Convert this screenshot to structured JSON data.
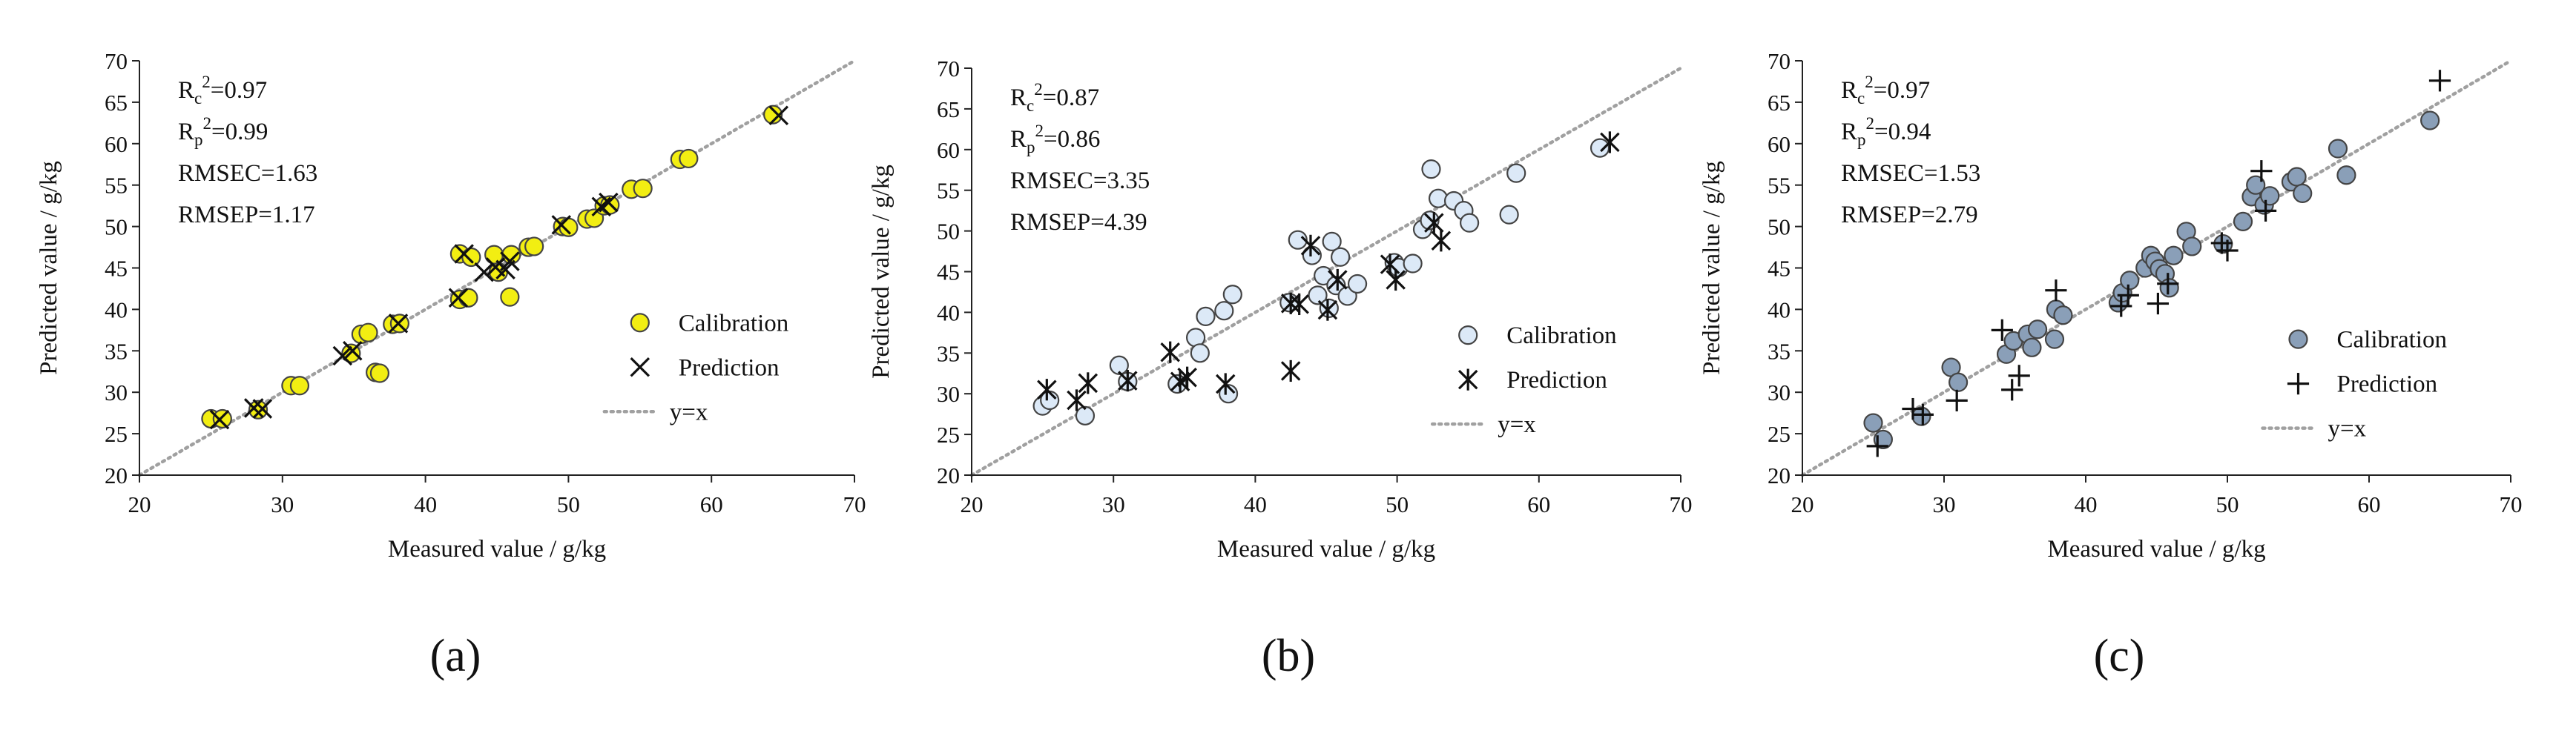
{
  "colors": {
    "axis": "#222222",
    "reference_line": "#a0a0a0",
    "cal_fill_a": "#f2ee12",
    "cal_fill_b": "#dce9f7",
    "cal_fill_c": "#8a9fb8",
    "marker_stroke": "#444444",
    "pred_marker": "#111111"
  },
  "panel_labels": [
    "(a)",
    "(b)",
    "(c)"
  ],
  "chart_data": [
    {
      "type": "scatter",
      "panel": "(a)",
      "xlabel": "Measured value / g/kg",
      "ylabel": "Predicted value / g/kg",
      "xlim": [
        20,
        70
      ],
      "ylim": [
        20,
        70
      ],
      "xticks": [
        20,
        30,
        40,
        50,
        60,
        70
      ],
      "yticks": [
        20,
        25,
        30,
        35,
        40,
        45,
        50,
        55,
        60,
        65,
        70
      ],
      "grid": false,
      "legend_position": "bottom-right",
      "stats": [
        {
          "sym": "R",
          "sub": "c",
          "sup": "2",
          "val": "=0.97"
        },
        {
          "sym": "R",
          "sub": "p",
          "sup": "2",
          "val": "=0.99"
        },
        {
          "sym": "RMSEC",
          "sub": "",
          "sup": "",
          "val": "=1.63"
        },
        {
          "sym": "RMSEP",
          "sub": "",
          "sup": "",
          "val": "=1.17"
        }
      ],
      "series": [
        {
          "name": "Calibration",
          "marker": "circle",
          "points": [
            [
              25,
              26.8
            ],
            [
              25.8,
              26.8
            ],
            [
              28.3,
              27.9
            ],
            [
              30.6,
              30.8
            ],
            [
              31.2,
              30.8
            ],
            [
              34.8,
              34.7
            ],
            [
              35.5,
              37
            ],
            [
              36,
              37.2
            ],
            [
              36.5,
              32.4
            ],
            [
              36.8,
              32.3
            ],
            [
              37.7,
              38.2
            ],
            [
              38.2,
              38.3
            ],
            [
              42.4,
              41.2
            ],
            [
              42.4,
              46.7
            ],
            [
              43,
              41.4
            ],
            [
              43.2,
              46.3
            ],
            [
              44.8,
              46.6
            ],
            [
              45.1,
              44.5
            ],
            [
              45.9,
              41.5
            ],
            [
              46,
              46.6
            ],
            [
              47.2,
              47.5
            ],
            [
              47.6,
              47.6
            ],
            [
              49.6,
              50
            ],
            [
              50,
              49.9
            ],
            [
              51.3,
              50.9
            ],
            [
              51.8,
              51
            ],
            [
              52.5,
              52.5
            ],
            [
              52.9,
              52.6
            ],
            [
              54.4,
              54.5
            ],
            [
              55.2,
              54.6
            ],
            [
              57.8,
              58.1
            ],
            [
              58.4,
              58.2
            ],
            [
              64.3,
              63.5
            ]
          ]
        },
        {
          "name": "Prediction",
          "marker": "x",
          "points": [
            [
              25.6,
              26.7
            ],
            [
              28,
              28.1
            ],
            [
              28.6,
              28
            ],
            [
              34.2,
              34.4
            ],
            [
              34.9,
              35
            ],
            [
              38.1,
              38.3
            ],
            [
              42.3,
              41.4
            ],
            [
              42.7,
              46.7
            ],
            [
              44.1,
              44.5
            ],
            [
              44.9,
              45.1
            ],
            [
              45.6,
              44.8
            ],
            [
              45.9,
              45.8
            ],
            [
              49.5,
              50.2
            ],
            [
              52.3,
              52.4
            ],
            [
              52.8,
              52.9
            ],
            [
              64.7,
              63.4
            ]
          ]
        },
        {
          "name": "y=x",
          "marker": "line-dotted",
          "points": [
            [
              20,
              20
            ],
            [
              70,
              70
            ]
          ]
        }
      ]
    },
    {
      "type": "scatter",
      "panel": "(b)",
      "xlabel": "Measured value / g/kg",
      "ylabel": "Predicted value / g/kg",
      "xlim": [
        20,
        70
      ],
      "ylim": [
        20,
        70
      ],
      "xticks": [
        20,
        30,
        40,
        50,
        60,
        70
      ],
      "yticks": [
        20,
        25,
        30,
        35,
        40,
        45,
        50,
        55,
        60,
        65,
        70
      ],
      "grid": false,
      "legend_position": "bottom-right",
      "stats": [
        {
          "sym": "R",
          "sub": "c",
          "sup": "2",
          "val": "=0.87"
        },
        {
          "sym": "R",
          "sub": "p",
          "sup": "2",
          "val": "=0.86"
        },
        {
          "sym": "RMSEC",
          "sub": "",
          "sup": "",
          "val": "=3.35"
        },
        {
          "sym": "RMSEP",
          "sub": "",
          "sup": "",
          "val": "=4.39"
        }
      ],
      "series": [
        {
          "name": "Calibration",
          "marker": "circle",
          "points": [
            [
              25,
              28.5
            ],
            [
              25.5,
              29.2
            ],
            [
              28,
              27.3
            ],
            [
              30.4,
              33.5
            ],
            [
              31,
              31.5
            ],
            [
              34.5,
              31.2
            ],
            [
              35.8,
              36.9
            ],
            [
              36.1,
              35
            ],
            [
              36.5,
              39.5
            ],
            [
              37.8,
              40.2
            ],
            [
              38.1,
              30
            ],
            [
              38.4,
              42.2
            ],
            [
              42.4,
              41.2
            ],
            [
              43,
              48.9
            ],
            [
              44,
              47
            ],
            [
              44.4,
              42.1
            ],
            [
              44.8,
              44.5
            ],
            [
              45.2,
              40.5
            ],
            [
              45.4,
              48.7
            ],
            [
              45.7,
              43.3
            ],
            [
              46,
              46.8
            ],
            [
              46.5,
              42
            ],
            [
              47.2,
              43.5
            ],
            [
              49.8,
              46.1
            ],
            [
              50.1,
              45.5
            ],
            [
              51.1,
              46
            ],
            [
              51.8,
              50.2
            ],
            [
              52.3,
              51.3
            ],
            [
              52.4,
              57.6
            ],
            [
              52.9,
              54
            ],
            [
              54,
              53.7
            ],
            [
              54.7,
              52.5
            ],
            [
              55.1,
              51
            ],
            [
              57.9,
              52
            ],
            [
              58.4,
              57.1
            ],
            [
              64.3,
              60.2
            ]
          ]
        },
        {
          "name": "Prediction",
          "marker": "asterisk",
          "points": [
            [
              25.3,
              30.5
            ],
            [
              27.4,
              29.2
            ],
            [
              28.2,
              31.3
            ],
            [
              31,
              31.6
            ],
            [
              34,
              35.1
            ],
            [
              34.7,
              31.5
            ],
            [
              35.2,
              32
            ],
            [
              37.9,
              31.2
            ],
            [
              42.5,
              32.8
            ],
            [
              42.5,
              41.1
            ],
            [
              43.1,
              41
            ],
            [
              43.9,
              48.2
            ],
            [
              45.1,
              40.3
            ],
            [
              45.8,
              44
            ],
            [
              49.5,
              45.9
            ],
            [
              49.9,
              44
            ],
            [
              52.6,
              51
            ],
            [
              53.1,
              48.8
            ],
            [
              65,
              60.9
            ]
          ]
        },
        {
          "name": "y=x",
          "marker": "line-dotted",
          "points": [
            [
              20,
              20
            ],
            [
              70,
              70
            ]
          ]
        }
      ]
    },
    {
      "type": "scatter",
      "panel": "(c)",
      "xlabel": "Measured value / g/kg",
      "ylabel": "Predicted value / g/kg",
      "xlim": [
        20,
        70
      ],
      "ylim": [
        20,
        70
      ],
      "xticks": [
        20,
        30,
        40,
        50,
        60,
        70
      ],
      "yticks": [
        20,
        25,
        30,
        35,
        40,
        45,
        50,
        55,
        60,
        65,
        70
      ],
      "grid": false,
      "legend_position": "bottom-right",
      "stats": [
        {
          "sym": "R",
          "sub": "c",
          "sup": "2",
          "val": "=0.97"
        },
        {
          "sym": "R",
          "sub": "p",
          "sup": "2",
          "val": "=0.94"
        },
        {
          "sym": "RMSEC",
          "sub": "",
          "sup": "",
          "val": "=1.53"
        },
        {
          "sym": "RMSEP",
          "sub": "",
          "sup": "",
          "val": "=2.79"
        }
      ],
      "series": [
        {
          "name": "Calibration",
          "marker": "circle",
          "points": [
            [
              25,
              26.3
            ],
            [
              25.7,
              24.3
            ],
            [
              28.4,
              27.1
            ],
            [
              30.5,
              33
            ],
            [
              31,
              31.2
            ],
            [
              34.4,
              34.6
            ],
            [
              34.9,
              36.2
            ],
            [
              35.9,
              37
            ],
            [
              36.2,
              35.4
            ],
            [
              36.6,
              37.6
            ],
            [
              37.8,
              36.4
            ],
            [
              37.9,
              40
            ],
            [
              38.4,
              39.3
            ],
            [
              42.3,
              40.8
            ],
            [
              42.6,
              42
            ],
            [
              43.1,
              43.5
            ],
            [
              44.2,
              45
            ],
            [
              44.6,
              46.5
            ],
            [
              44.9,
              45.8
            ],
            [
              45.2,
              44.9
            ],
            [
              45.6,
              44.3
            ],
            [
              45.9,
              42.6
            ],
            [
              46.2,
              46.5
            ],
            [
              47.1,
              49.4
            ],
            [
              47.5,
              47.6
            ],
            [
              49.7,
              47.9
            ],
            [
              51.1,
              50.6
            ],
            [
              51.7,
              53.6
            ],
            [
              52,
              55
            ],
            [
              52.6,
              52.6
            ],
            [
              53,
              53.7
            ],
            [
              54.5,
              55.4
            ],
            [
              54.9,
              56
            ],
            [
              55.3,
              54
            ],
            [
              57.8,
              59.4
            ],
            [
              58.4,
              56.2
            ],
            [
              64.3,
              62.8
            ]
          ]
        },
        {
          "name": "Prediction",
          "marker": "plus",
          "points": [
            [
              25.3,
              23.5
            ],
            [
              27.8,
              28
            ],
            [
              28.5,
              27.3
            ],
            [
              30.9,
              29
            ],
            [
              34.1,
              37.5
            ],
            [
              34.8,
              30.3
            ],
            [
              35.3,
              32
            ],
            [
              37.9,
              42.3
            ],
            [
              42.5,
              40.4
            ],
            [
              43,
              41.7
            ],
            [
              45.1,
              40.7
            ],
            [
              45.8,
              43.1
            ],
            [
              49.6,
              48
            ],
            [
              50,
              47.1
            ],
            [
              52.4,
              56.7
            ],
            [
              52.7,
              51.9
            ],
            [
              65,
              67.6
            ]
          ]
        },
        {
          "name": "y=x",
          "marker": "line-dotted",
          "points": [
            [
              20,
              20
            ],
            [
              70,
              70
            ]
          ]
        }
      ]
    }
  ]
}
